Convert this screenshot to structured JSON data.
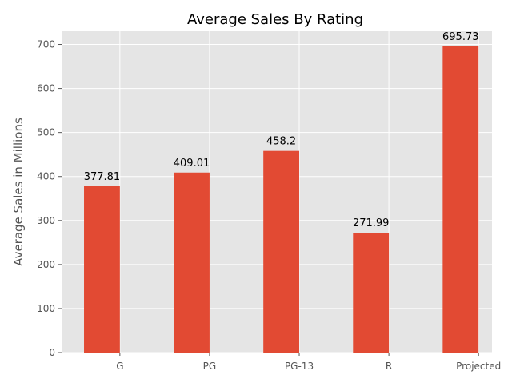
{
  "chart_data": {
    "type": "bar",
    "title": "Average Sales By Rating",
    "xlabel": "",
    "ylabel": "Average Sales in Millions",
    "categories": [
      "G",
      "PG",
      "PG-13",
      "R",
      "Projected"
    ],
    "values": [
      377.81,
      409.01,
      458.2,
      271.99,
      695.73
    ],
    "value_labels": [
      "377.81",
      "409.01",
      "458.2",
      "271.99",
      "695.73"
    ],
    "ylim": [
      0,
      730
    ],
    "yticks": [
      0,
      100,
      200,
      300,
      400,
      500,
      600,
      700
    ],
    "grid": true,
    "style": "ggplot",
    "colors": {
      "bar": "#E24A33",
      "plot_bg": "#E5E5E5",
      "grid": "#FFFFFF",
      "tick_text": "#555555",
      "label_text": "#555555",
      "title_text": "#000000",
      "value_text": "#000000"
    }
  }
}
